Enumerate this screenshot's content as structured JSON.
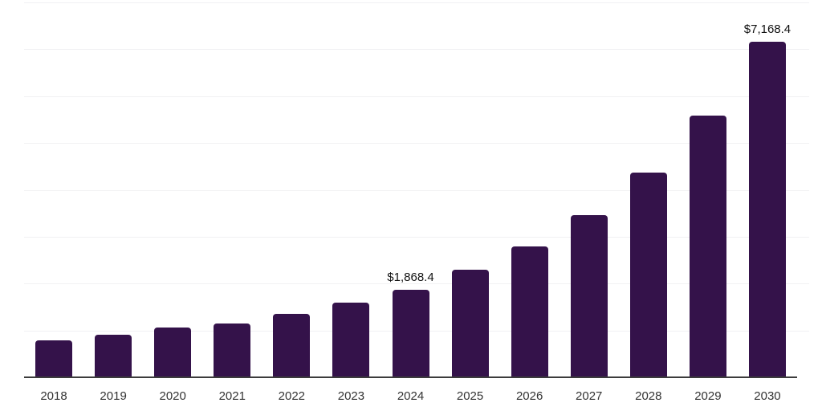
{
  "chart_data": {
    "type": "bar",
    "title": "",
    "xlabel": "",
    "ylabel": "",
    "categories": [
      "2018",
      "2019",
      "2020",
      "2021",
      "2022",
      "2023",
      "2024",
      "2025",
      "2026",
      "2027",
      "2028",
      "2029",
      "2030"
    ],
    "values": [
      790,
      910,
      1065,
      1155,
      1345,
      1585,
      1868.4,
      2290,
      2790,
      3460,
      4360,
      5590,
      7168.4
    ],
    "data_labels": [
      "",
      "",
      "",
      "",
      "",
      "",
      "$1,868.4",
      "",
      "",
      "",
      "",
      "",
      "$7,168.4"
    ],
    "ylim": [
      0,
      8000
    ],
    "gridline_step": 1000,
    "grid": "horizontal",
    "legend": "none",
    "bar_color": "#34124A",
    "grid_color": "#f1f1f3",
    "axis_color": "#3c3c3c",
    "data_label_color": "#111111",
    "tick_label_color": "#333333"
  }
}
